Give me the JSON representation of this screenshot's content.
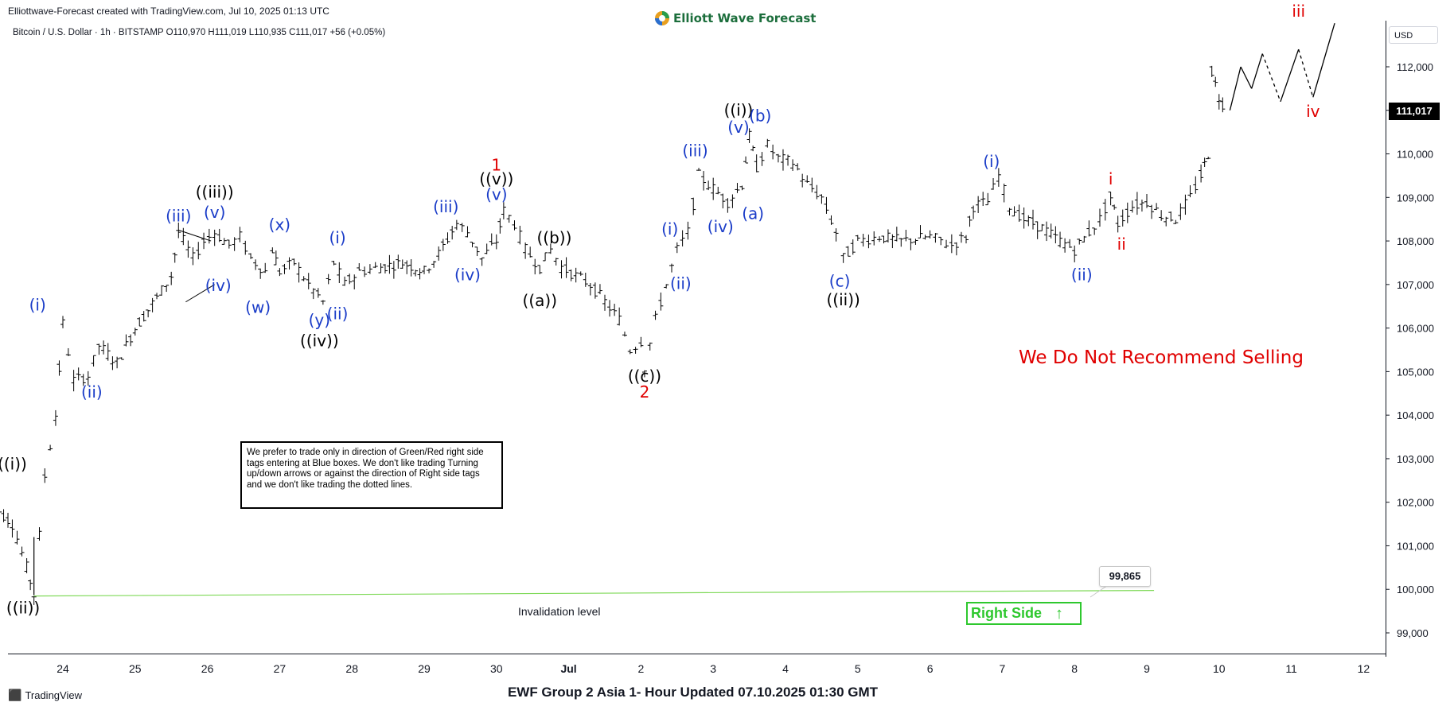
{
  "header": {
    "credit": "Elliottwave-Forecast created with TradingView.com, Jul 10, 2025 01:13 UTC",
    "brand": "Elliott Wave Forecast",
    "symbol_line": "Bitcoin / U.S. Dollar · 1h · BITSTAMP  O110,970  H111,019  L110,935  C111,017  +56 (+0.05%)"
  },
  "price_axis": {
    "currency": "USD",
    "last_price": "111,017",
    "ticks": [
      "112,000",
      "111,000",
      "110,000",
      "109,000",
      "108,000",
      "107,000",
      "106,000",
      "105,000",
      "104,000",
      "103,000",
      "102,000",
      "101,000",
      "100,000",
      "99,000"
    ]
  },
  "time_axis": {
    "ticks": [
      "24",
      "25",
      "26",
      "27",
      "28",
      "29",
      "30",
      "Jul",
      "2",
      "3",
      "4",
      "5",
      "6",
      "7",
      "8",
      "9",
      "10",
      "11",
      "12"
    ]
  },
  "note_box": "We prefer to trade only in direction of Green/Red right side tags entering at Blue boxes. We don't like trading Turning up/down arrows or against the direction of Right side tags and we don't like trading the dotted lines.",
  "warning": "We Do Not Recommend Selling",
  "invalidation": {
    "label": "Invalidation level",
    "price": "99,865"
  },
  "right_side_tag": {
    "label": "Right Side",
    "arrow": "up-arrow-icon",
    "color": "#2ec82e"
  },
  "footer": {
    "title": "EWF Group 2 Asia 1- Hour Updated 07.10.2025 01:30 GMT",
    "tv_logo": "TradingView"
  },
  "colors": {
    "black_labels": "#000000",
    "blue_labels": "#1a3cc8",
    "red_labels": "#e00000",
    "invalidation_line": "#7ed957"
  },
  "chart_data": {
    "type": "ohlc-bars",
    "symbol": "Bitcoin / U.S. Dollar",
    "timeframe": "1h",
    "exchange": "BITSTAMP",
    "ohlc_last": {
      "open": 110970,
      "high": 111019,
      "low": 110935,
      "close": 111017,
      "change": 56,
      "change_pct": 0.05
    },
    "ylim": [
      98500,
      113500
    ],
    "x_range_days": [
      "Jun 23",
      "Jul 12"
    ],
    "price_path": [
      [
        23.0,
        102000
      ],
      [
        23.3,
        101500
      ],
      [
        23.5,
        100500
      ],
      [
        23.6,
        99865
      ],
      [
        23.75,
        102600
      ],
      [
        23.9,
        104000
      ],
      [
        24.0,
        106100
      ],
      [
        24.15,
        104800
      ],
      [
        24.35,
        104900
      ],
      [
        24.5,
        105600
      ],
      [
        24.75,
        105200
      ],
      [
        25.0,
        106000
      ],
      [
        25.3,
        106700
      ],
      [
        25.5,
        107200
      ],
      [
        25.6,
        108200
      ],
      [
        25.8,
        107600
      ],
      [
        25.95,
        108000
      ],
      [
        26.1,
        108200
      ],
      [
        26.3,
        107900
      ],
      [
        26.45,
        108100
      ],
      [
        26.6,
        107600
      ],
      [
        26.8,
        107300
      ],
      [
        26.9,
        107800
      ],
      [
        27.0,
        107300
      ],
      [
        27.2,
        107500
      ],
      [
        27.4,
        107000
      ],
      [
        27.6,
        106600
      ],
      [
        27.75,
        107500
      ],
      [
        27.9,
        107000
      ],
      [
        28.1,
        107300
      ],
      [
        28.4,
        107400
      ],
      [
        28.7,
        107500
      ],
      [
        29.0,
        107300
      ],
      [
        29.2,
        107700
      ],
      [
        29.45,
        108400
      ],
      [
        29.6,
        108200
      ],
      [
        29.8,
        107600
      ],
      [
        30.0,
        108000
      ],
      [
        30.1,
        108700
      ],
      [
        30.25,
        108400
      ],
      [
        30.4,
        107800
      ],
      [
        30.6,
        107400
      ],
      [
        30.75,
        107800
      ],
      [
        30.9,
        107400
      ],
      [
        31.1,
        107200
      ],
      [
        31.3,
        107000
      ],
      [
        31.5,
        106600
      ],
      [
        31.7,
        106200
      ],
      [
        31.85,
        105500
      ],
      [
        32.0,
        105700
      ],
      [
        32.05,
        105100
      ],
      [
        32.2,
        106200
      ],
      [
        32.35,
        107000
      ],
      [
        32.5,
        107800
      ],
      [
        32.65,
        108200
      ],
      [
        32.8,
        109500
      ],
      [
        33.0,
        109200
      ],
      [
        33.2,
        108900
      ],
      [
        33.4,
        109300
      ],
      [
        33.5,
        110400
      ],
      [
        33.6,
        109700
      ],
      [
        33.75,
        110200
      ],
      [
        33.9,
        109900
      ],
      [
        34.1,
        109800
      ],
      [
        34.3,
        109300
      ],
      [
        34.5,
        109000
      ],
      [
        34.7,
        108200
      ],
      [
        34.8,
        107600
      ],
      [
        35.0,
        108000
      ],
      [
        35.3,
        108100
      ],
      [
        35.6,
        108000
      ],
      [
        36.0,
        108100
      ],
      [
        36.3,
        107900
      ],
      [
        36.5,
        108100
      ],
      [
        36.6,
        108800
      ],
      [
        36.8,
        108900
      ],
      [
        36.95,
        109500
      ],
      [
        37.1,
        108800
      ],
      [
        37.3,
        108500
      ],
      [
        37.55,
        108300
      ],
      [
        37.8,
        108000
      ],
      [
        38.0,
        107800
      ],
      [
        38.2,
        108200
      ],
      [
        38.35,
        108500
      ],
      [
        38.5,
        109000
      ],
      [
        38.6,
        108400
      ],
      [
        38.8,
        108800
      ],
      [
        39.0,
        108900
      ],
      [
        39.2,
        108600
      ],
      [
        39.4,
        108500
      ],
      [
        39.6,
        109000
      ],
      [
        39.75,
        109500
      ],
      [
        39.85,
        110000
      ],
      [
        39.9,
        111900
      ],
      [
        40.0,
        111300
      ],
      [
        40.1,
        111017
      ]
    ],
    "projection": [
      {
        "from": [
          40.15,
          111000
        ],
        "to": [
          40.3,
          112000
        ],
        "style": "solid"
      },
      {
        "from": [
          40.3,
          112000
        ],
        "to": [
          40.45,
          111500
        ],
        "style": "solid"
      },
      {
        "from": [
          40.45,
          111500
        ],
        "to": [
          40.6,
          112300
        ],
        "style": "solid"
      },
      {
        "from": [
          40.6,
          112300
        ],
        "to": [
          40.85,
          111200
        ],
        "style": "dashed"
      },
      {
        "from": [
          40.85,
          111200
        ],
        "to": [
          41.1,
          112400
        ],
        "style": "solid"
      },
      {
        "from": [
          41.1,
          112400
        ],
        "to": [
          41.3,
          111300
        ],
        "style": "dashed"
      },
      {
        "from": [
          41.3,
          111300
        ],
        "to": [
          41.6,
          113000
        ],
        "style": "solid"
      }
    ],
    "invalidation_line": {
      "price": 99865,
      "from_day": 23.6,
      "to_day": 39.1
    },
    "triangle": [
      [
        [
          25.6,
          108250
        ],
        [
          26.05,
          108000
        ]
      ],
      [
        [
          25.7,
          106600
        ],
        [
          26.1,
          107000
        ]
      ]
    ],
    "wave_labels": [
      {
        "text": "((i))",
        "color": "black",
        "day": 23.3,
        "price": 102750
      },
      {
        "text": "((ii))",
        "color": "black",
        "day": 23.45,
        "price": 99450
      },
      {
        "text": "(i)",
        "color": "blue",
        "day": 23.65,
        "price": 106400
      },
      {
        "text": "(ii)",
        "color": "blue",
        "day": 24.4,
        "price": 104400
      },
      {
        "text": "(iii)",
        "color": "blue",
        "day": 25.6,
        "price": 108450
      },
      {
        "text": "((iii))",
        "color": "black",
        "day": 26.1,
        "price": 109000
      },
      {
        "text": "(v)",
        "color": "blue",
        "day": 26.1,
        "price": 108530
      },
      {
        "text": "(iv)",
        "color": "blue",
        "day": 26.15,
        "price": 106850
      },
      {
        "text": "(x)",
        "color": "blue",
        "day": 27.0,
        "price": 108250
      },
      {
        "text": "(w)",
        "color": "blue",
        "day": 26.7,
        "price": 106350
      },
      {
        "text": "(i)",
        "color": "blue",
        "day": 27.8,
        "price": 107950
      },
      {
        "text": "(y)",
        "color": "blue",
        "day": 27.55,
        "price": 106060
      },
      {
        "text": "(ii)",
        "color": "blue",
        "day": 27.8,
        "price": 106200
      },
      {
        "text": "((iv))",
        "color": "black",
        "day": 27.55,
        "price": 105580
      },
      {
        "text": "(iii)",
        "color": "blue",
        "day": 29.3,
        "price": 108660
      },
      {
        "text": "(iv)",
        "color": "blue",
        "day": 29.6,
        "price": 107100
      },
      {
        "text": "1",
        "color": "red",
        "day": 30.0,
        "price": 109620
      },
      {
        "text": "((v))",
        "color": "black",
        "day": 30.0,
        "price": 109300
      },
      {
        "text": "(v)",
        "color": "blue",
        "day": 30.0,
        "price": 108940
      },
      {
        "text": "((b))",
        "color": "black",
        "day": 30.8,
        "price": 107950
      },
      {
        "text": "((a))",
        "color": "black",
        "day": 30.6,
        "price": 106500
      },
      {
        "text": "((c))",
        "color": "black",
        "day": 32.05,
        "price": 104770
      },
      {
        "text": "2",
        "color": "red",
        "day": 32.05,
        "price": 104400
      },
      {
        "text": "(i)",
        "color": "blue",
        "day": 32.4,
        "price": 108150
      },
      {
        "text": "(ii)",
        "color": "blue",
        "day": 32.55,
        "price": 106900
      },
      {
        "text": "(iii)",
        "color": "blue",
        "day": 32.75,
        "price": 109950
      },
      {
        "text": "(iv)",
        "color": "blue",
        "day": 33.1,
        "price": 108200
      },
      {
        "text": "(v)",
        "color": "blue",
        "day": 33.35,
        "price": 110480
      },
      {
        "text": "((i))",
        "color": "black",
        "day": 33.35,
        "price": 110880
      },
      {
        "text": "(b)",
        "color": "blue",
        "day": 33.65,
        "price": 110750
      },
      {
        "text": "(a)",
        "color": "blue",
        "day": 33.55,
        "price": 108500
      },
      {
        "text": "(c)",
        "color": "blue",
        "day": 34.75,
        "price": 106950
      },
      {
        "text": "((ii))",
        "color": "black",
        "day": 34.8,
        "price": 106520
      },
      {
        "text": "(i)",
        "color": "blue",
        "day": 36.85,
        "price": 109700
      },
      {
        "text": "(ii)",
        "color": "blue",
        "day": 38.1,
        "price": 107100
      },
      {
        "text": "i",
        "color": "red",
        "day": 38.5,
        "price": 109300
      },
      {
        "text": "ii",
        "color": "red",
        "day": 38.65,
        "price": 107800
      },
      {
        "text": "iii",
        "color": "red",
        "day": 41.1,
        "price": 113150
      },
      {
        "text": "iv",
        "color": "red",
        "day": 41.3,
        "price": 110850
      }
    ]
  }
}
